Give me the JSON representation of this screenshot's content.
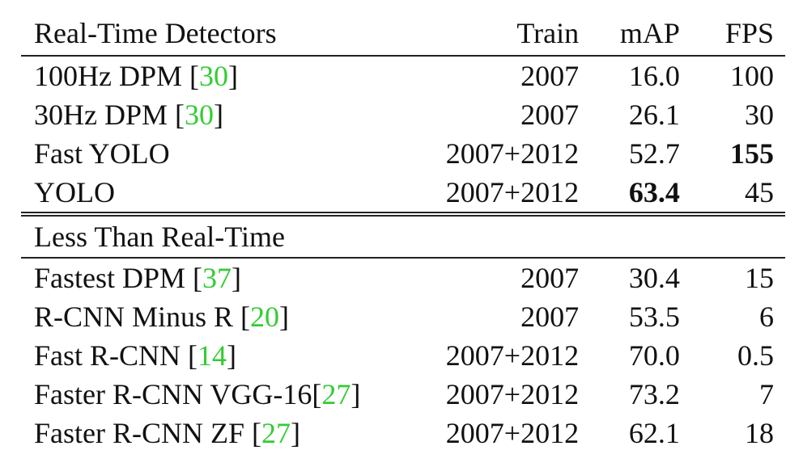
{
  "table": {
    "headers": {
      "method": "Real-Time Detectors",
      "train": "Train",
      "map": "mAP",
      "fps": "FPS"
    },
    "realtime_rows": [
      {
        "name": "100Hz DPM ",
        "cite": "30",
        "train": "2007",
        "map": "16.0",
        "fps": "100"
      },
      {
        "name": "30Hz DPM ",
        "cite": "30",
        "train": "2007",
        "map": "26.1",
        "fps": "30"
      },
      {
        "name": "Fast YOLO",
        "cite": "",
        "train": "2007+2012",
        "map": "52.7",
        "fps": "155"
      },
      {
        "name": "YOLO",
        "cite": "",
        "train": "2007+2012",
        "map": "63.4",
        "fps": "45"
      }
    ],
    "section2_title": "Less Than Real-Time",
    "slow_rows": [
      {
        "name": "Fastest DPM ",
        "cite": "37",
        "train": "2007",
        "map": "30.4",
        "fps": "15"
      },
      {
        "name": "R-CNN Minus R ",
        "cite": "20",
        "train": "2007",
        "map": "53.5",
        "fps": "6"
      },
      {
        "name": "Fast R-CNN ",
        "cite": "14",
        "train": "2007+2012",
        "map": "70.0",
        "fps": "0.5"
      },
      {
        "name": "Faster R-CNN VGG-16",
        "cite": "27",
        "train": "2007+2012",
        "map": "73.2",
        "fps": "7"
      },
      {
        "name": "Faster R-CNN ZF ",
        "cite": "27",
        "train": "2007+2012",
        "map": "62.1",
        "fps": "18"
      }
    ],
    "brackets": {
      "open": "[",
      "close": "]"
    },
    "cite_color": "#33cc33"
  }
}
